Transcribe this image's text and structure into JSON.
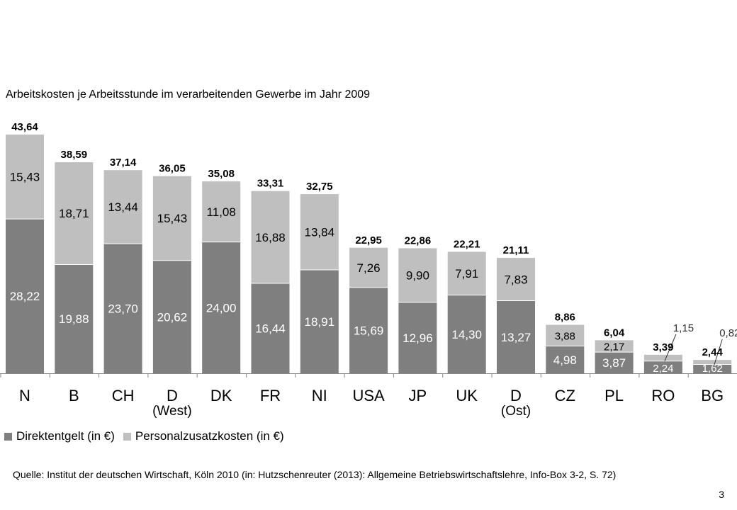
{
  "chart_data": {
    "type": "bar",
    "stacked": true,
    "title": "Arbeitskosten je Arbeitsstunde im verarbeitenden Gewerbe im Jahr 2009",
    "categories": [
      "N",
      "B",
      "CH",
      "D",
      "DK",
      "FR",
      "NI",
      "USA",
      "JP",
      "UK",
      "D",
      "CZ",
      "PL",
      "RO",
      "BG"
    ],
    "category_sublabels": [
      "",
      "",
      "",
      "(West)",
      "",
      "",
      "",
      "",
      "",
      "",
      "(Ost)",
      "",
      "",
      "",
      ""
    ],
    "series": [
      {
        "name": "Direktentgelt (in €)",
        "color": "#7f7f7f",
        "values": [
          28.22,
          19.88,
          23.7,
          20.62,
          24.0,
          16.44,
          18.91,
          15.69,
          12.96,
          14.3,
          13.27,
          4.98,
          3.87,
          2.24,
          1.62
        ],
        "labels": [
          "28,22",
          "19,88",
          "23,70",
          "20,62",
          "24,00",
          "16,44",
          "18,91",
          "15,69",
          "12,96",
          "14,30",
          "13,27",
          "4,98",
          "3,87",
          "2,24",
          "1,62"
        ]
      },
      {
        "name": "Personalzusatzkosten (in €)",
        "color": "#bfbfbf",
        "values": [
          15.43,
          18.71,
          13.44,
          15.43,
          11.08,
          16.88,
          13.84,
          7.26,
          9.9,
          7.91,
          7.83,
          3.88,
          2.17,
          1.15,
          0.82
        ],
        "labels": [
          "15,43",
          "18,71",
          "13,44",
          "15,43",
          "11,08",
          "16,88",
          "13,84",
          "7,26",
          "9,90",
          "7,91",
          "7,83",
          "3,88",
          "2,17",
          "1,15",
          "0,82"
        ]
      }
    ],
    "totals": [
      43.64,
      38.59,
      37.14,
      36.05,
      35.08,
      33.31,
      32.75,
      22.95,
      22.86,
      22.21,
      21.11,
      8.86,
      6.04,
      3.39,
      2.44
    ],
    "total_labels": [
      "43,64",
      "38,59",
      "37,14",
      "36,05",
      "35,08",
      "33,31",
      "32,75",
      "22,95",
      "22,86",
      "22,21",
      "21,11",
      "8,86",
      "6,04",
      "3,39",
      "2,44"
    ],
    "ylim": [
      0,
      45
    ],
    "grid": false,
    "legend": "bottom-left"
  },
  "source": "Quelle: Institut der deutschen Wirtschaft, Köln 2010 (in: Hutzschenreuter (2013): Allgemeine Betriebswirtschaftslehre, Info-Box 3-2, S. 72)",
  "page_number": "3"
}
